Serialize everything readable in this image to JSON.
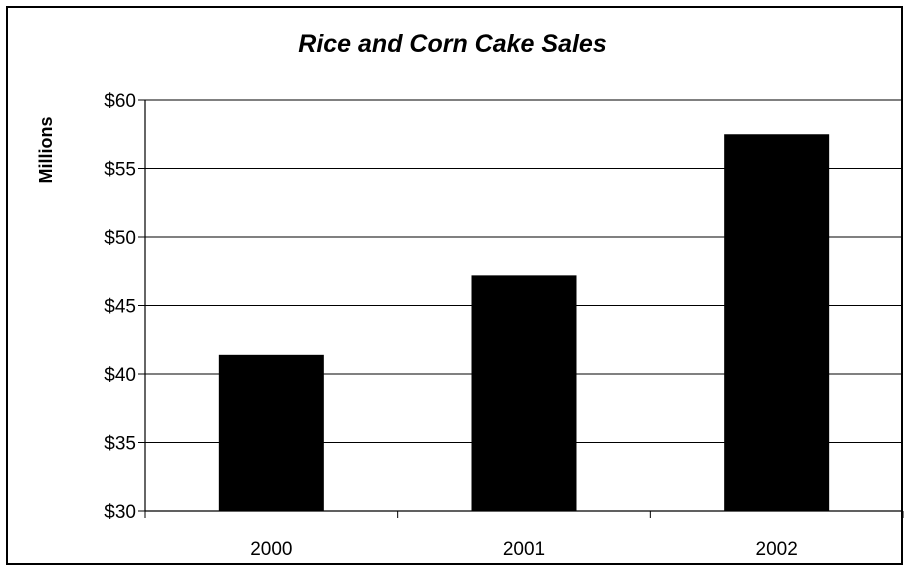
{
  "chart_data": {
    "type": "bar",
    "title": "Rice and Corn Cake Sales",
    "xlabel": "",
    "ylabel": "Millions",
    "categories": [
      "2000",
      "2001",
      "2002"
    ],
    "values": [
      41.4,
      47.2,
      57.5
    ],
    "ylim": [
      30,
      60
    ],
    "yticks": [
      30,
      35,
      40,
      45,
      50,
      55,
      60
    ],
    "ytick_labels": [
      "$30",
      "$35",
      "$40",
      "$45",
      "$50",
      "$55",
      "$60"
    ],
    "grid": true,
    "bar_color": "#000000"
  }
}
